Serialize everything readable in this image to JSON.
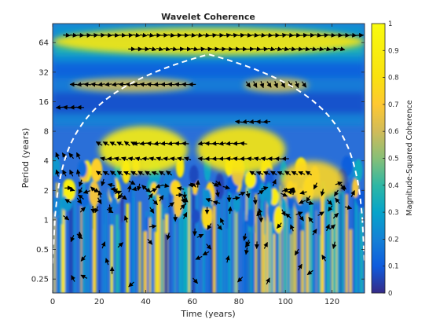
{
  "chart_data": {
    "type": "heatmap",
    "title": "Wavelet Coherence",
    "xlabel": "Time (years)",
    "ylabel": "Period (years)",
    "xlim": [
      0,
      134
    ],
    "ylim_period": [
      0.18,
      100
    ],
    "y_scale": "log2",
    "x_ticks": [
      "0",
      "20",
      "40",
      "60",
      "80",
      "100",
      "120"
    ],
    "x_tick_values": [
      0,
      20,
      40,
      60,
      80,
      100,
      120
    ],
    "y_ticks": [
      "0.25",
      "0.5",
      "1",
      "2",
      "4",
      "8",
      "16",
      "32",
      "64"
    ],
    "y_tick_values": [
      0.25,
      0.5,
      1,
      2,
      4,
      8,
      16,
      32,
      64
    ],
    "colorbar": {
      "label": "Magnitude-Squared Coherence",
      "range": [
        0,
        1
      ],
      "ticks": [
        "0",
        "0.1",
        "0.2",
        "0.3",
        "0.4",
        "0.5",
        "0.6",
        "0.7",
        "0.8",
        "0.9",
        "1"
      ],
      "tick_values": [
        0,
        0.1,
        0.2,
        0.3,
        0.4,
        0.5,
        0.6,
        0.7,
        0.8,
        0.9,
        1
      ],
      "colormap": "parula"
    },
    "cone_of_influence": "dashed white",
    "high_coherence_regions": [
      {
        "time": [
          0,
          134
        ],
        "period": [
          48,
          90
        ],
        "coherence": 0.85
      },
      {
        "time": [
          8,
          60
        ],
        "period": [
          20,
          28
        ],
        "coherence": 0.6
      },
      {
        "time": [
          82,
          110
        ],
        "period": [
          20,
          28
        ],
        "coherence": 0.6
      },
      {
        "time": [
          20,
          58
        ],
        "period": [
          3,
          9
        ],
        "coherence": 0.9
      },
      {
        "time": [
          62,
          100
        ],
        "period": [
          3,
          9
        ],
        "coherence": 0.85
      },
      {
        "time": [
          98,
          125
        ],
        "period": [
          1.6,
          4
        ],
        "coherence": 0.75
      }
    ],
    "grid": false
  }
}
